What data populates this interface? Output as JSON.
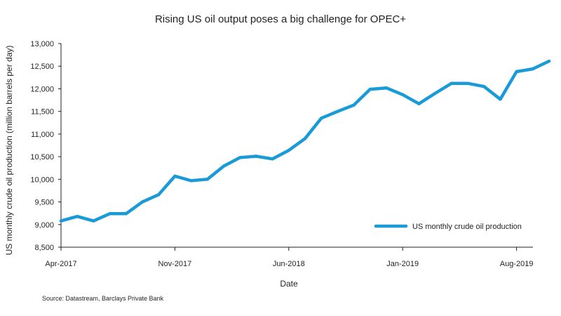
{
  "title": "Rising US oil output poses a big challenge for OPEC+",
  "source": "Source: Datastream, Barclays Private Bank",
  "chart_data": {
    "type": "line",
    "title": "Rising US oil output poses a big challenge for OPEC+",
    "xlabel": "Date",
    "ylabel": "US monthly crude oil production (million barrels per day)",
    "ylim": [
      8500,
      13000
    ],
    "yticks": [
      8500,
      9000,
      9500,
      10000,
      10500,
      11000,
      11500,
      12000,
      12500,
      13000
    ],
    "ytick_labels": [
      "8,500",
      "9,000",
      "9,500",
      "10,000",
      "10,500",
      "11,000",
      "11,500",
      "12,000",
      "12,500",
      "13,000"
    ],
    "x": [
      "Apr-2017",
      "May-2017",
      "Jun-2017",
      "Jul-2017",
      "Aug-2017",
      "Sep-2017",
      "Oct-2017",
      "Nov-2017",
      "Dec-2017",
      "Jan-2018",
      "Feb-2018",
      "Mar-2018",
      "Apr-2018",
      "May-2018",
      "Jun-2018",
      "Jul-2018",
      "Aug-2018",
      "Sep-2018",
      "Oct-2018",
      "Nov-2018",
      "Dec-2018",
      "Jan-2019",
      "Feb-2019",
      "Mar-2019",
      "Apr-2019",
      "May-2019",
      "Jun-2019",
      "Jul-2019",
      "Aug-2019",
      "Sep-2019",
      "Oct-2019"
    ],
    "xtick_labels": [
      "Apr-2017",
      "Nov-2017",
      "Jun-2018",
      "Jan-2019",
      "Aug-2019"
    ],
    "grid": false,
    "legend_position": "bottom-right",
    "series": [
      {
        "name": "US monthly crude oil production",
        "color": "#1a9ad6",
        "values": [
          9080,
          9180,
          9080,
          9240,
          9240,
          9500,
          9660,
          10070,
          9970,
          10000,
          10290,
          10480,
          10510,
          10450,
          10640,
          10900,
          11350,
          11500,
          11640,
          11990,
          12020,
          11870,
          11670,
          11900,
          12120,
          12120,
          12050,
          11770,
          12380,
          12440,
          12610
        ]
      }
    ]
  }
}
